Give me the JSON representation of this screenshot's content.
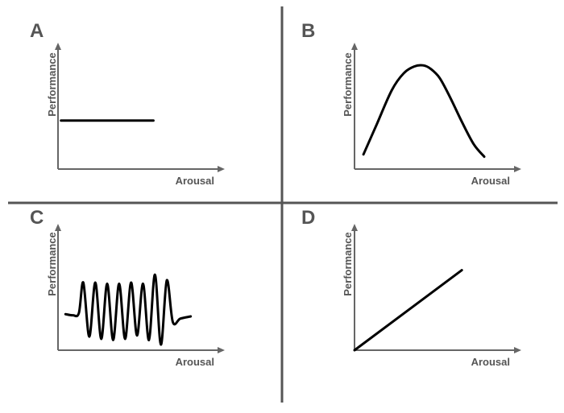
{
  "colors": {
    "curve": "#000000",
    "axis": "#666666",
    "label": "#555555",
    "divider": "#555555"
  },
  "chart_data": [
    {
      "panel": "A",
      "type": "line",
      "xlabel": "Arousal",
      "ylabel": "Performance",
      "xlim": [
        0,
        10
      ],
      "ylim": [
        0,
        10
      ],
      "x": [
        0.2,
        6.4
      ],
      "y": [
        4.3,
        4.3
      ]
    },
    {
      "panel": "B",
      "type": "line",
      "xlabel": "Arousal",
      "ylabel": "Performance",
      "xlim": [
        0,
        10
      ],
      "ylim": [
        0,
        10
      ],
      "x": [
        0.6,
        1.5,
        2.5,
        3.3,
        4.0,
        4.6,
        5.1,
        5.7,
        6.4,
        7.2,
        8.0,
        8.7
      ],
      "y": [
        1.3,
        4.0,
        7.0,
        8.5,
        9.1,
        9.2,
        8.9,
        8.1,
        6.4,
        4.2,
        2.2,
        1.1
      ]
    },
    {
      "panel": "C",
      "type": "line",
      "xlabel": "Arousal",
      "ylabel": "Performance",
      "xlim": [
        0,
        10
      ],
      "ylim": [
        0,
        10
      ],
      "x": [
        0.5,
        1.0,
        1.4,
        1.7,
        2.1,
        2.5,
        2.9,
        3.3,
        3.7,
        4.1,
        4.5,
        4.9,
        5.3,
        5.7,
        6.1,
        6.5,
        6.9,
        7.3,
        7.7,
        8.2,
        8.9
      ],
      "y": [
        3.2,
        3.1,
        3.3,
        6.0,
        1.2,
        6.0,
        1.0,
        5.9,
        0.9,
        5.9,
        1.0,
        6.0,
        1.3,
        5.9,
        0.9,
        6.7,
        0.5,
        6.2,
        2.5,
        2.8,
        3.0
      ]
    },
    {
      "panel": "D",
      "type": "line",
      "xlabel": "Arousal",
      "ylabel": "Performance",
      "xlim": [
        0,
        10
      ],
      "ylim": [
        0,
        10
      ],
      "x": [
        0,
        7.2
      ],
      "y": [
        0,
        7.1
      ]
    }
  ]
}
